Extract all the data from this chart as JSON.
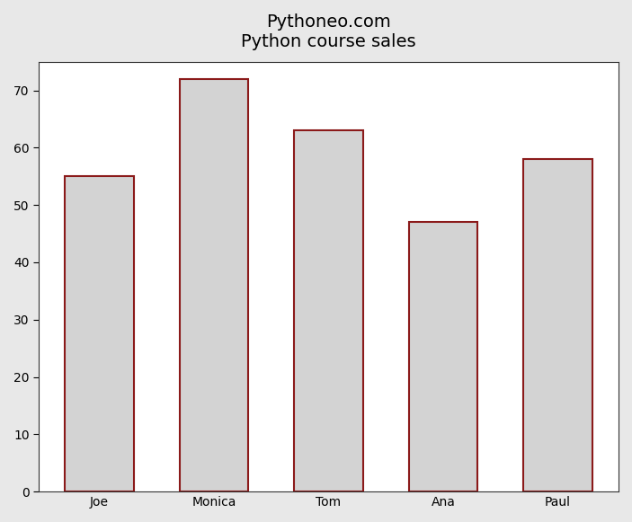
{
  "categories": [
    "Joe",
    "Monica",
    "Tom",
    "Ana",
    "Paul"
  ],
  "values": [
    55,
    72,
    63,
    47,
    58
  ],
  "bar_color": "#d3d3d3",
  "bar_edgecolor": "#8b1a1a",
  "bar_linewidth": 1.5,
  "title_line1": "Pythoneo.com",
  "title_line2": "Python course sales",
  "title_fontsize": 14,
  "ylim": [
    0,
    75
  ],
  "yticks": [
    0,
    10,
    20,
    30,
    40,
    50,
    60,
    70
  ],
  "bar_width": 0.6,
  "figure_facecolor": "#e8e8e8",
  "axes_facecolor": "#ffffff"
}
